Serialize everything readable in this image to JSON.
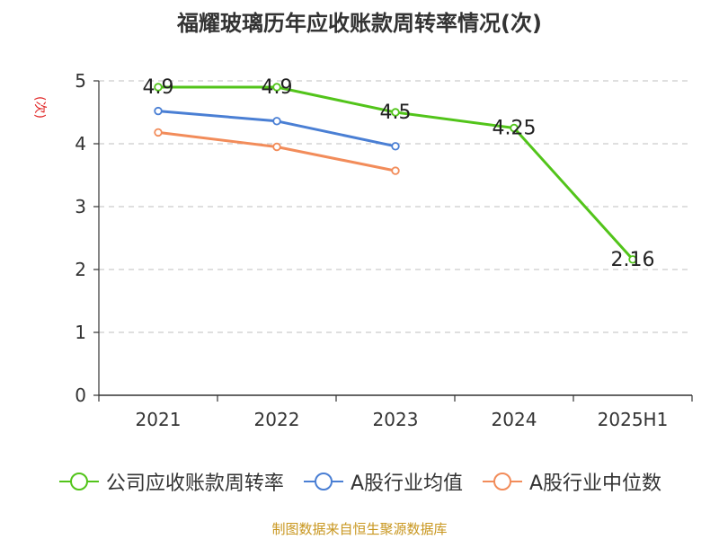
{
  "title": "福耀玻璃历年应收账款周转率情况(次)",
  "y_unit": "(次)",
  "source": "制图数据来自恒生聚源数据库",
  "chart_data": {
    "type": "line",
    "categories": [
      "2021",
      "2022",
      "2023",
      "2024",
      "2025H1"
    ],
    "ylim": [
      0,
      5
    ],
    "yticks": [
      0,
      1,
      2,
      3,
      4,
      5
    ],
    "grid": true,
    "legend_position": "bottom",
    "series": [
      {
        "name": "公司应收账款周转率",
        "color": "#52c41a",
        "values": [
          4.9,
          4.9,
          4.5,
          4.25,
          2.16
        ],
        "labels": [
          "4.9",
          "4.9",
          "4.5",
          "4.25",
          "2.16"
        ],
        "show_labels": true
      },
      {
        "name": "A股行业均值",
        "color": "#4a7fd4",
        "values": [
          4.52,
          4.36,
          3.96,
          null,
          null
        ],
        "show_labels": false
      },
      {
        "name": "A股行业中位数",
        "color": "#f28c5a",
        "values": [
          4.18,
          3.95,
          3.57,
          null,
          null
        ],
        "show_labels": false
      }
    ]
  }
}
